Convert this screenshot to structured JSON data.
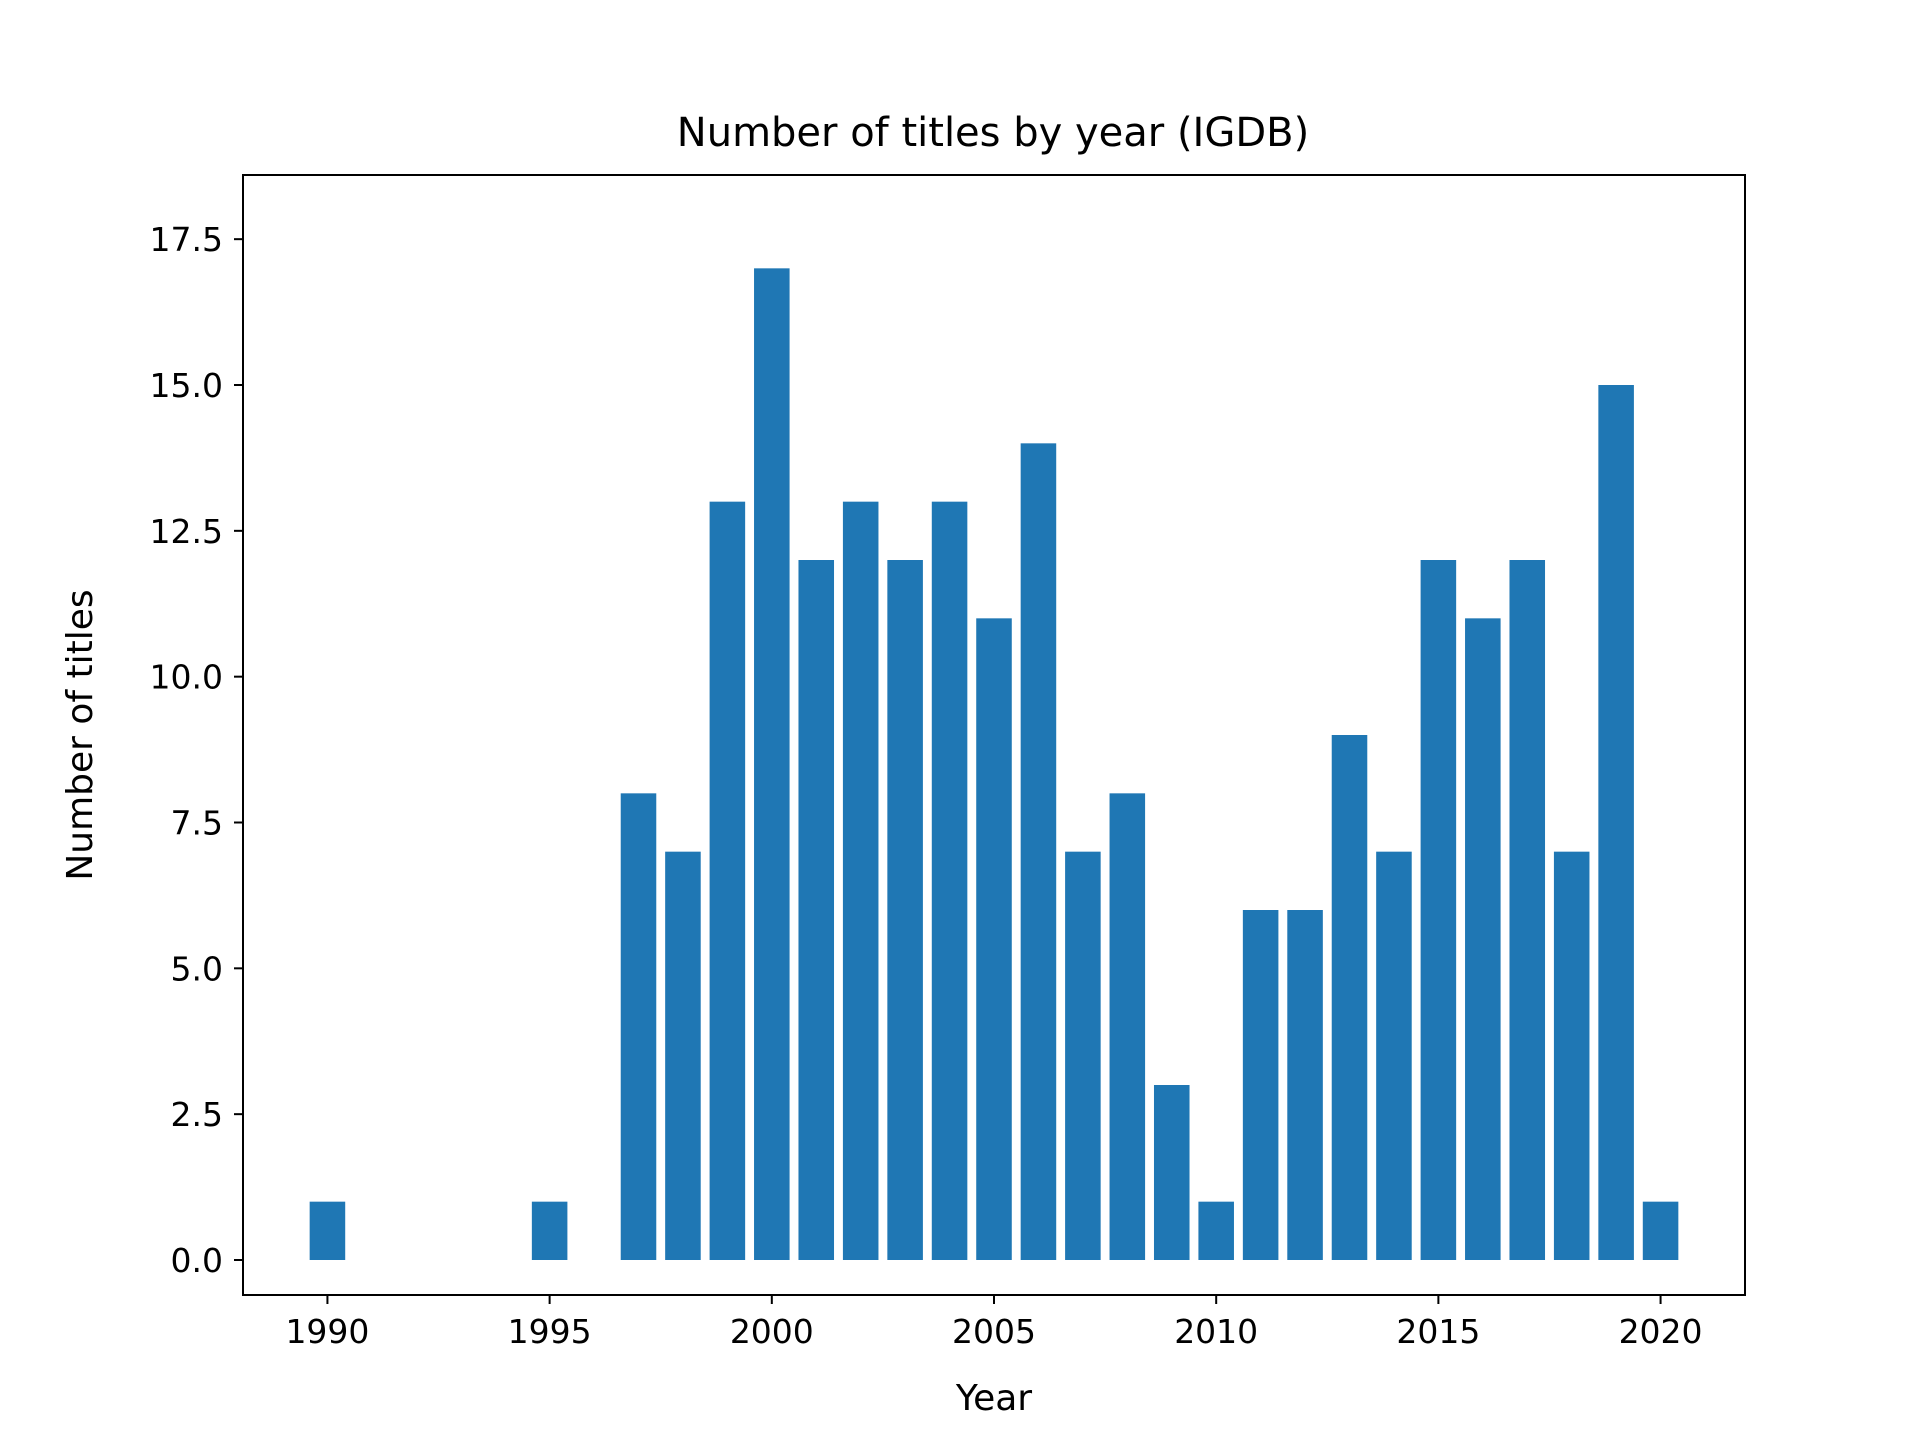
{
  "chart_data": {
    "type": "bar",
    "title": "Number of titles by year (IGDB)",
    "xlabel": "Year",
    "ylabel": "Number of titles",
    "x": [
      1990,
      1995,
      1997,
      1998,
      1999,
      2000,
      2001,
      2002,
      2003,
      2004,
      2005,
      2006,
      2007,
      2008,
      2009,
      2010,
      2011,
      2012,
      2013,
      2014,
      2015,
      2016,
      2017,
      2018,
      2019,
      2020
    ],
    "values": [
      1,
      1,
      8,
      7,
      13,
      17,
      12,
      13,
      12,
      13,
      11,
      14,
      7,
      8,
      3,
      1,
      6,
      6,
      9,
      7,
      12,
      11,
      12,
      7,
      15,
      1
    ],
    "xlim": [
      1988.1,
      2021.9
    ],
    "ylim": [
      -0.6,
      18.6
    ],
    "xticks": [
      1990,
      1995,
      2000,
      2005,
      2010,
      2015,
      2020
    ],
    "xtick_labels": [
      "1990",
      "1995",
      "2000",
      "2005",
      "2010",
      "2015",
      "2020"
    ],
    "yticks": [
      0,
      2.5,
      5,
      7.5,
      10,
      12.5,
      15,
      17.5
    ],
    "ytick_labels": [
      "0.0",
      "2.5",
      "5.0",
      "7.5",
      "10.0",
      "12.5",
      "15.0",
      "17.5"
    ],
    "bar_color": "#1f77b4",
    "grid": false,
    "legend": "none"
  }
}
